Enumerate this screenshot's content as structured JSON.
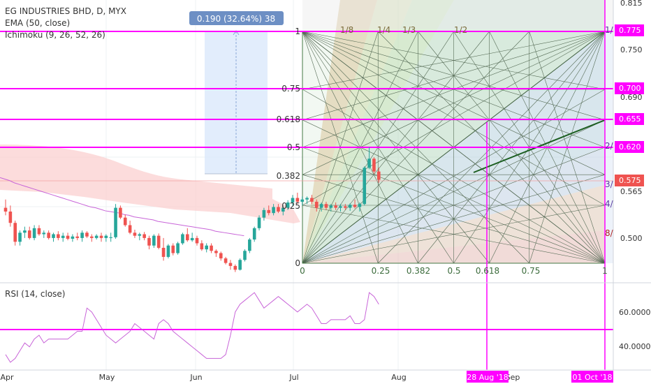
{
  "header": {
    "symbol_line": "EG INDUSTRIES BHD, D, MYX",
    "ema_label": "EMA (50, close)",
    "ichimoku_label": "Ichimoku (9, 26, 52, 26)",
    "rsi_label": "RSI (14, close)"
  },
  "measure_box": {
    "text": "0.190 (32.64%) 38"
  },
  "price_axis": {
    "ticks": [
      "0.815",
      "0.750",
      "0.690",
      "0.565",
      "0.500"
    ],
    "tags": [
      "0.775",
      "0.700",
      "0.655",
      "0.620",
      "0.575"
    ],
    "tag_color": "#ff00ff"
  },
  "rsi_axis": {
    "ticks": [
      "60.0000",
      "40.0000"
    ]
  },
  "time_axis": {
    "ticks": [
      "Apr",
      "May",
      "Jun",
      "Jul",
      "Aug",
      "Sep"
    ],
    "date_tags": [
      "28 Aug '18",
      "01 Oct '18"
    ]
  },
  "fib_retracement": {
    "levels": [
      "1",
      "0.75",
      "0.618",
      "0.5",
      "0.382",
      "0.25",
      "0"
    ]
  },
  "gann_box": {
    "x_labels": [
      "0",
      "0.25",
      "0.382",
      "0.5",
      "0.618",
      "0.75",
      "1"
    ],
    "fan_labels": [
      "1/8",
      "1/4",
      "1/3",
      "1/2",
      "1/"
    ],
    "right_labels": [
      "1/",
      "2/",
      "3/",
      "4/",
      "8/"
    ]
  },
  "colors": {
    "up": "#26a69a",
    "down": "#ef5350",
    "magenta": "#ff00ff",
    "ema": "#c864d8",
    "cloud": "#fbd0d0",
    "rsi_line": "#c864d8",
    "measure_fill": "#dbe9fb",
    "measure_tag": "#6d8fc4"
  },
  "chart_data": {
    "type": "candlestick",
    "symbol": "EG INDUSTRIES BHD",
    "interval": "D",
    "exchange": "MYX",
    "y_range": [
      0.455,
      0.82
    ],
    "rsi_range": [
      28,
      72
    ],
    "candles": [
      {
        "t": "Apr",
        "o": 0.545,
        "h": 0.556,
        "l": 0.535,
        "c": 0.54
      },
      {
        "o": 0.54,
        "h": 0.548,
        "l": 0.52,
        "c": 0.525
      },
      {
        "o": 0.525,
        "h": 0.528,
        "l": 0.495,
        "c": 0.5
      },
      {
        "o": 0.5,
        "h": 0.515,
        "l": 0.495,
        "c": 0.512
      },
      {
        "o": 0.512,
        "h": 0.52,
        "l": 0.505,
        "c": 0.515
      },
      {
        "o": 0.515,
        "h": 0.52,
        "l": 0.503,
        "c": 0.505
      },
      {
        "o": 0.505,
        "h": 0.522,
        "l": 0.502,
        "c": 0.518
      },
      {
        "o": 0.518,
        "h": 0.522,
        "l": 0.508,
        "c": 0.51
      },
      {
        "o": 0.51,
        "h": 0.515,
        "l": 0.505,
        "c": 0.512
      },
      {
        "o": 0.512,
        "h": 0.515,
        "l": 0.503,
        "c": 0.505
      },
      {
        "o": 0.505,
        "h": 0.512,
        "l": 0.5,
        "c": 0.51
      },
      {
        "o": 0.51,
        "h": 0.514,
        "l": 0.502,
        "c": 0.505
      },
      {
        "o": 0.505,
        "h": 0.512,
        "l": 0.5,
        "c": 0.508
      },
      {
        "o": 0.508,
        "h": 0.512,
        "l": 0.502,
        "c": 0.504
      },
      {
        "o": 0.504,
        "h": 0.51,
        "l": 0.5,
        "c": 0.507
      },
      {
        "o": 0.507,
        "h": 0.512,
        "l": 0.502,
        "c": 0.505
      },
      {
        "o": 0.505,
        "h": 0.515,
        "l": 0.5,
        "c": 0.512
      },
      {
        "o": 0.512,
        "h": 0.514,
        "l": 0.505,
        "c": 0.507
      },
      {
        "o": 0.507,
        "h": 0.51,
        "l": 0.5,
        "c": 0.505
      },
      {
        "o": 0.505,
        "h": 0.51,
        "l": 0.503,
        "c": 0.508
      },
      {
        "o": 0.508,
        "h": 0.512,
        "l": 0.5,
        "c": 0.505
      },
      {
        "o": 0.505,
        "h": 0.51,
        "l": 0.5,
        "c": 0.508
      },
      {
        "t": "May",
        "o": 0.505,
        "h": 0.512,
        "l": 0.5,
        "c": 0.506
      },
      {
        "o": 0.506,
        "h": 0.55,
        "l": 0.504,
        "c": 0.545
      },
      {
        "o": 0.545,
        "h": 0.548,
        "l": 0.53,
        "c": 0.532
      },
      {
        "o": 0.532,
        "h": 0.536,
        "l": 0.52,
        "c": 0.522
      },
      {
        "o": 0.522,
        "h": 0.528,
        "l": 0.51,
        "c": 0.512
      },
      {
        "o": 0.512,
        "h": 0.516,
        "l": 0.505,
        "c": 0.508
      },
      {
        "o": 0.508,
        "h": 0.512,
        "l": 0.502,
        "c": 0.51
      },
      {
        "o": 0.51,
        "h": 0.513,
        "l": 0.502,
        "c": 0.505
      },
      {
        "o": 0.505,
        "h": 0.508,
        "l": 0.49,
        "c": 0.495
      },
      {
        "o": 0.495,
        "h": 0.51,
        "l": 0.492,
        "c": 0.508
      },
      {
        "o": 0.508,
        "h": 0.511,
        "l": 0.49,
        "c": 0.492
      },
      {
        "o": 0.492,
        "h": 0.505,
        "l": 0.475,
        "c": 0.48
      },
      {
        "t": "Jun",
        "o": 0.48,
        "h": 0.497,
        "l": 0.478,
        "c": 0.495
      },
      {
        "o": 0.495,
        "h": 0.498,
        "l": 0.482,
        "c": 0.485
      },
      {
        "o": 0.485,
        "h": 0.5,
        "l": 0.483,
        "c": 0.498
      },
      {
        "o": 0.498,
        "h": 0.512,
        "l": 0.496,
        "c": 0.51
      },
      {
        "o": 0.51,
        "h": 0.518,
        "l": 0.5,
        "c": 0.502
      },
      {
        "o": 0.502,
        "h": 0.512,
        "l": 0.5,
        "c": 0.505
      },
      {
        "o": 0.505,
        "h": 0.508,
        "l": 0.495,
        "c": 0.498
      },
      {
        "o": 0.498,
        "h": 0.502,
        "l": 0.488,
        "c": 0.49
      },
      {
        "o": 0.49,
        "h": 0.498,
        "l": 0.486,
        "c": 0.495
      },
      {
        "o": 0.495,
        "h": 0.498,
        "l": 0.485,
        "c": 0.488
      },
      {
        "o": 0.488,
        "h": 0.49,
        "l": 0.48,
        "c": 0.485
      },
      {
        "o": 0.485,
        "h": 0.487,
        "l": 0.475,
        "c": 0.478
      },
      {
        "o": 0.478,
        "h": 0.48,
        "l": 0.47,
        "c": 0.472
      },
      {
        "t": "Jul",
        "o": 0.472,
        "h": 0.476,
        "l": 0.463,
        "c": 0.468
      },
      {
        "o": 0.468,
        "h": 0.47,
        "l": 0.46,
        "c": 0.463
      },
      {
        "o": 0.463,
        "h": 0.478,
        "l": 0.462,
        "c": 0.476
      },
      {
        "o": 0.476,
        "h": 0.49,
        "l": 0.474,
        "c": 0.488
      },
      {
        "o": 0.488,
        "h": 0.505,
        "l": 0.485,
        "c": 0.503
      },
      {
        "o": 0.503,
        "h": 0.52,
        "l": 0.5,
        "c": 0.518
      },
      {
        "o": 0.518,
        "h": 0.535,
        "l": 0.515,
        "c": 0.532
      },
      {
        "o": 0.532,
        "h": 0.545,
        "l": 0.528,
        "c": 0.542
      },
      {
        "o": 0.542,
        "h": 0.548,
        "l": 0.535,
        "c": 0.538
      },
      {
        "o": 0.538,
        "h": 0.55,
        "l": 0.535,
        "c": 0.546
      },
      {
        "o": 0.546,
        "h": 0.55,
        "l": 0.538,
        "c": 0.54
      },
      {
        "o": 0.54,
        "h": 0.548,
        "l": 0.535,
        "c": 0.545
      },
      {
        "o": 0.545,
        "h": 0.555,
        "l": 0.542,
        "c": 0.552
      },
      {
        "o": 0.552,
        "h": 0.562,
        "l": 0.548,
        "c": 0.558
      },
      {
        "o": 0.558,
        "h": 0.565,
        "l": 0.55,
        "c": 0.553
      },
      {
        "o": 0.553,
        "h": 0.56,
        "l": 0.548,
        "c": 0.556
      },
      {
        "o": 0.556,
        "h": 0.56,
        "l": 0.55,
        "c": 0.558
      },
      {
        "t": "Aug",
        "o": 0.558,
        "h": 0.562,
        "l": 0.55,
        "c": 0.553
      },
      {
        "o": 0.553,
        "h": 0.556,
        "l": 0.54,
        "c": 0.545
      },
      {
        "o": 0.545,
        "h": 0.552,
        "l": 0.54,
        "c": 0.55
      },
      {
        "o": 0.55,
        "h": 0.553,
        "l": 0.542,
        "c": 0.545
      },
      {
        "o": 0.545,
        "h": 0.55,
        "l": 0.54,
        "c": 0.548
      },
      {
        "o": 0.548,
        "h": 0.552,
        "l": 0.542,
        "c": 0.545
      },
      {
        "o": 0.545,
        "h": 0.55,
        "l": 0.54,
        "c": 0.547
      },
      {
        "o": 0.547,
        "h": 0.55,
        "l": 0.542,
        "c": 0.545
      },
      {
        "o": 0.545,
        "h": 0.551,
        "l": 0.541,
        "c": 0.549
      },
      {
        "o": 0.549,
        "h": 0.556,
        "l": 0.544,
        "c": 0.546
      },
      {
        "o": 0.546,
        "h": 0.552,
        "l": 0.54,
        "c": 0.55
      },
      {
        "o": 0.55,
        "h": 0.6,
        "l": 0.548,
        "c": 0.598
      },
      {
        "o": 0.598,
        "h": 0.625,
        "l": 0.596,
        "c": 0.61
      },
      {
        "o": 0.61,
        "h": 0.612,
        "l": 0.59,
        "c": 0.593
      },
      {
        "o": 0.593,
        "h": 0.598,
        "l": 0.578,
        "c": 0.582
      }
    ],
    "ema50": [
      0.585,
      0.583,
      0.581,
      0.578,
      0.576,
      0.574,
      0.572,
      0.57,
      0.568,
      0.566,
      0.564,
      0.562,
      0.56,
      0.558,
      0.556,
      0.554,
      0.552,
      0.55,
      0.548,
      0.546,
      0.545,
      0.543,
      0.541,
      0.54,
      0.539,
      0.538,
      0.536,
      0.535,
      0.533,
      0.532,
      0.531,
      0.53,
      0.529,
      0.527,
      0.526,
      0.525,
      0.524,
      0.523,
      0.522,
      0.521,
      0.52,
      0.519,
      0.518,
      0.517,
      0.516,
      0.514,
      0.513,
      0.512,
      0.511,
      0.51,
      0.509,
      0.508
    ],
    "rsi": [
      36,
      32,
      34,
      38,
      42,
      40,
      44,
      46,
      42,
      44,
      44,
      44,
      44,
      44,
      46,
      48,
      48,
      60,
      58,
      54,
      50,
      46,
      44,
      42,
      44,
      46,
      48,
      52,
      50,
      48,
      46,
      44,
      52,
      54,
      52,
      48,
      46,
      44,
      42,
      40,
      38,
      36,
      34,
      34,
      34,
      34,
      36,
      46,
      58,
      62,
      64,
      66,
      68,
      64,
      60,
      62,
      64,
      66,
      64,
      62,
      60,
      58,
      60,
      62,
      60,
      56,
      52,
      52,
      54,
      54,
      54,
      54,
      56,
      52,
      52,
      54,
      68,
      66,
      62
    ]
  }
}
